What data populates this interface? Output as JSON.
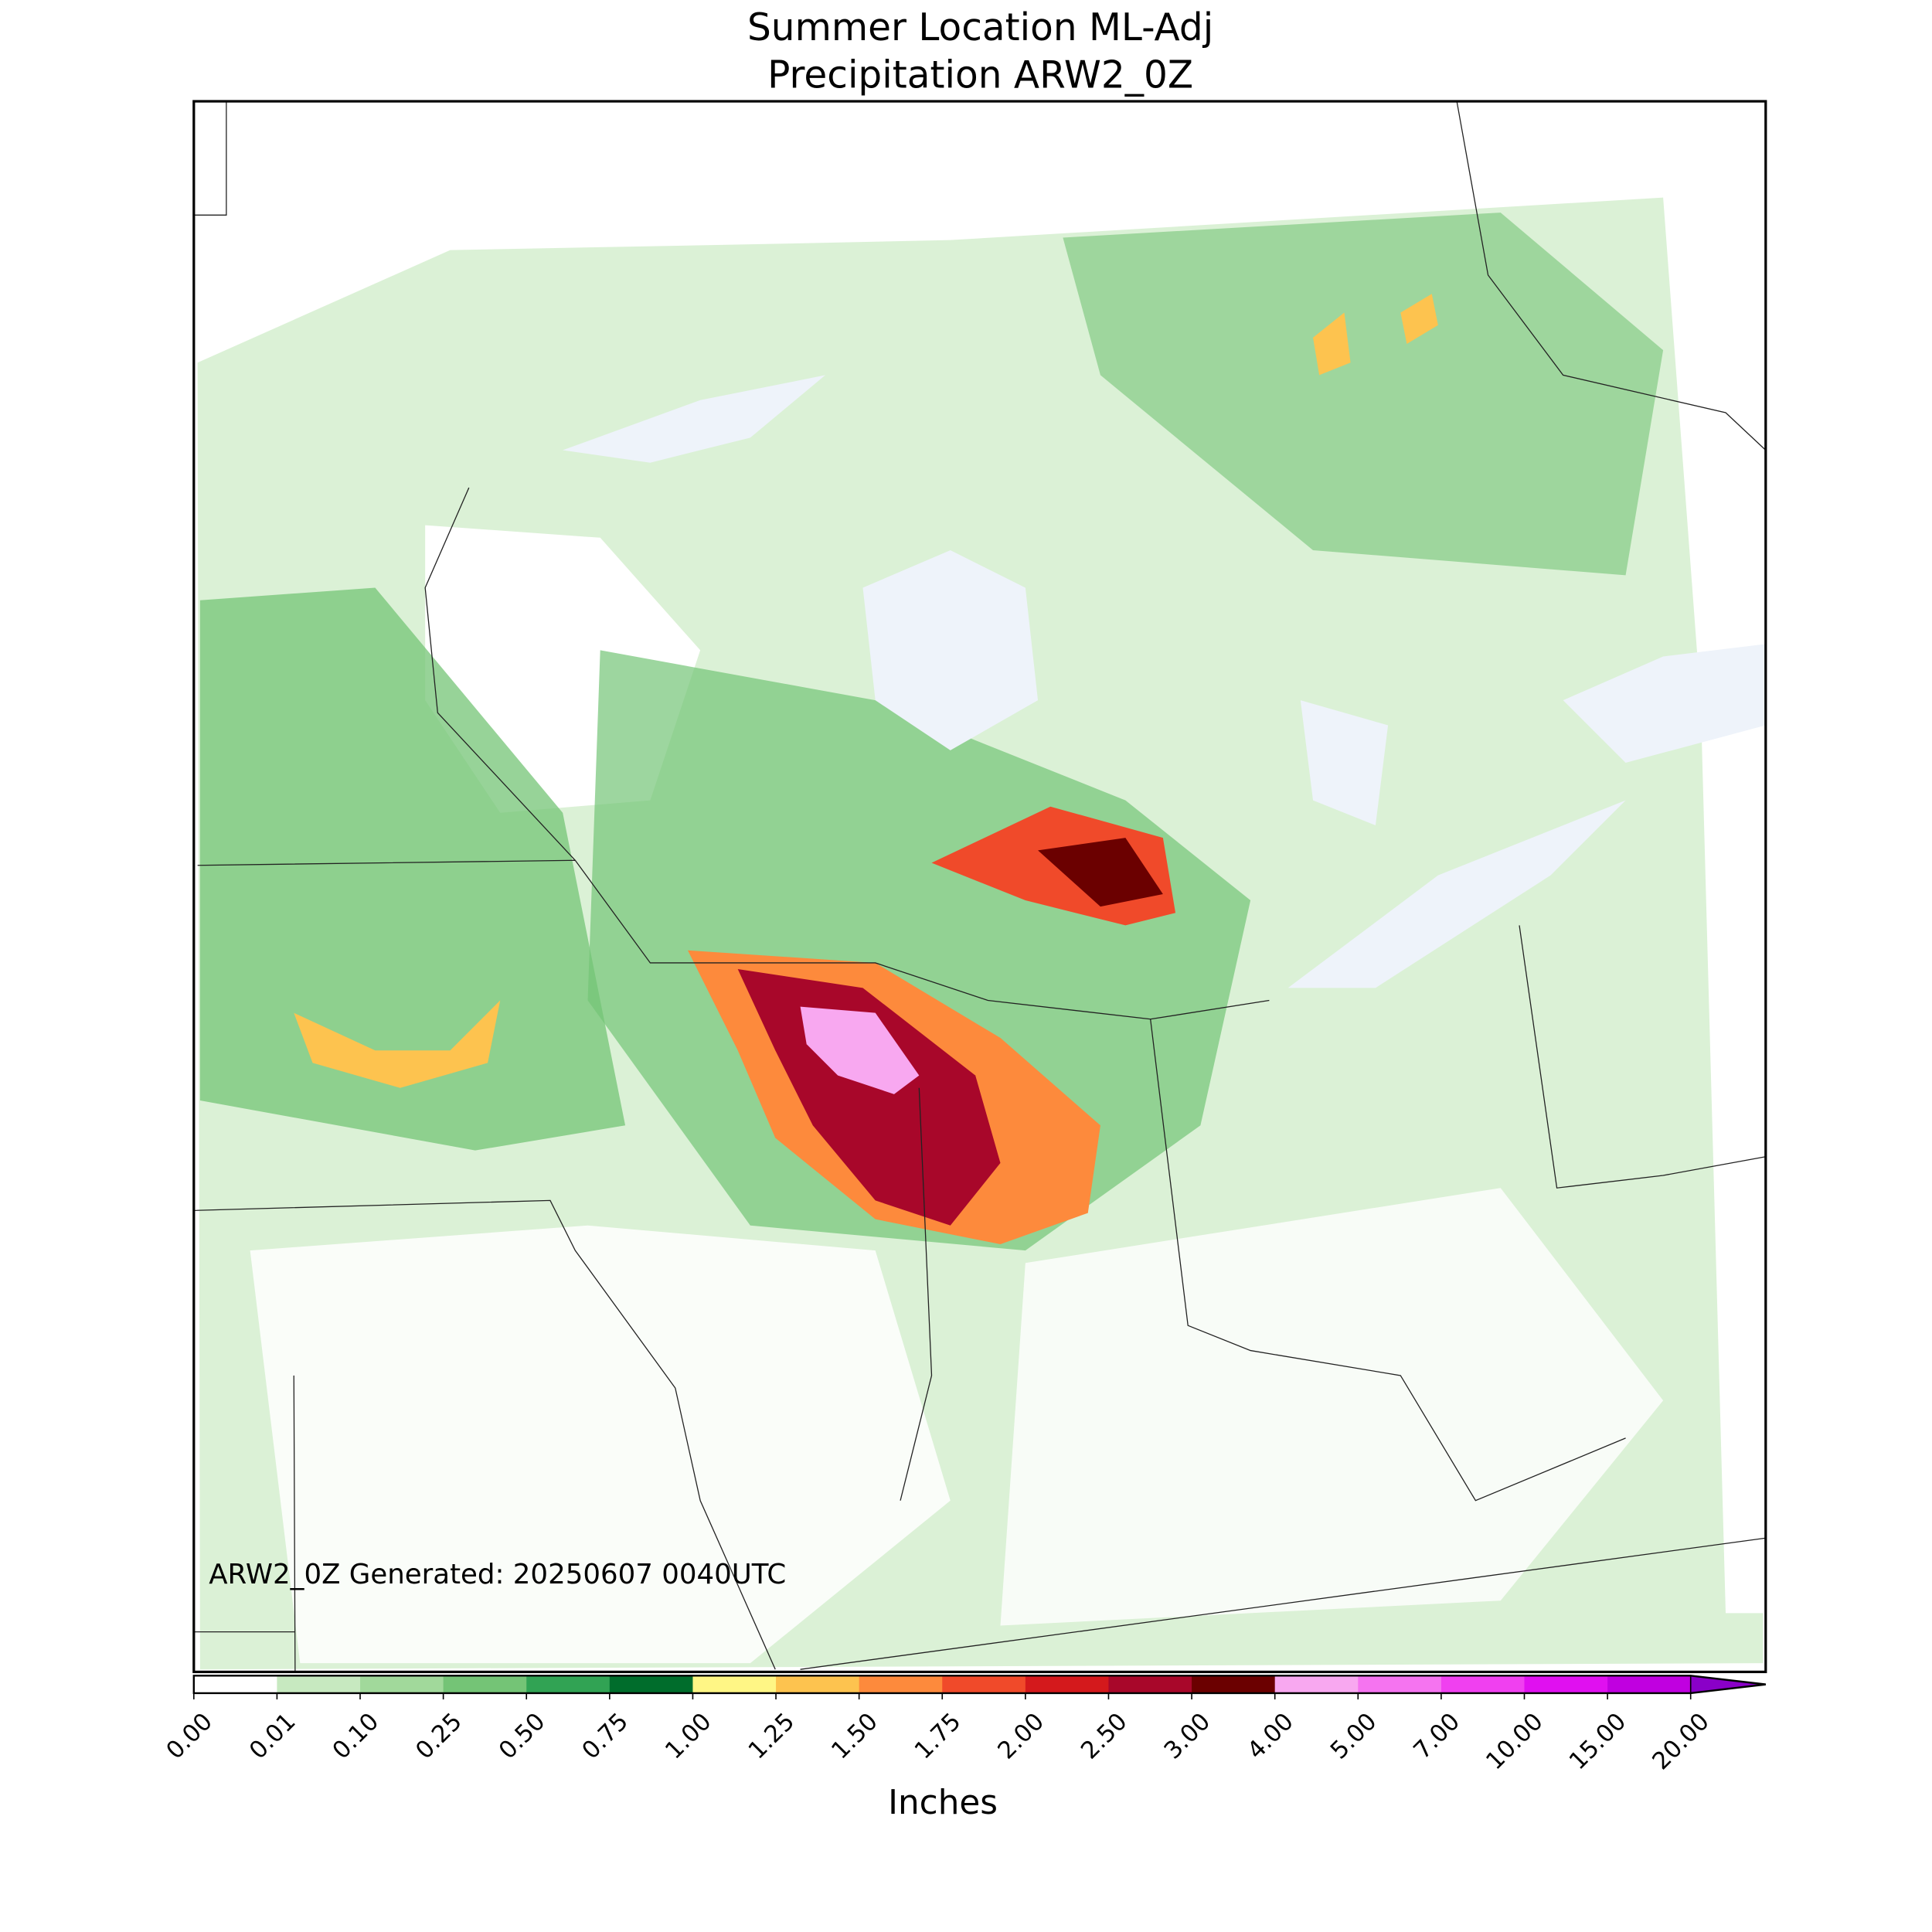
{
  "map": {
    "title": [
      "Summer Location ML-Adj",
      "Precipitation ARW2_0Z"
    ],
    "annotation": "ARW2_0Z Generated: 20250607 0040UTC",
    "colorbar": {
      "label": "Inches",
      "levels": [
        {
          "value": 0,
          "label": "0.00"
        },
        {
          "value": 0.01,
          "label": "0.01"
        },
        {
          "value": 0.1,
          "label": "0.10"
        },
        {
          "value": 0.25,
          "label": "0.25"
        },
        {
          "value": 0.5,
          "label": "0.50"
        },
        {
          "value": 0.75,
          "label": "0.75"
        },
        {
          "value": 1,
          "label": "1.00"
        },
        {
          "value": 1.25,
          "label": "1.25"
        },
        {
          "value": 1.5,
          "label": "1.50"
        },
        {
          "value": 1.75,
          "label": "1.75"
        },
        {
          "value": 2,
          "label": "2.00"
        },
        {
          "value": 2.5,
          "label": "2.50"
        },
        {
          "value": 3,
          "label": "3.00"
        },
        {
          "value": 4,
          "label": "4.00"
        },
        {
          "value": 5,
          "label": "5.00"
        },
        {
          "value": 7,
          "label": "7.00"
        },
        {
          "value": 10,
          "label": "10.00"
        },
        {
          "value": 15,
          "label": "15.00"
        },
        {
          "value": 20,
          "label": "20.00"
        }
      ],
      "colors": [
        "#ffffff",
        "#c7e9c0",
        "#a1d99b",
        "#74c476",
        "#31a354",
        "#006d2c",
        "#fff685",
        "#fdc34f",
        "#fd8a3c",
        "#f04a2a",
        "#d4191c",
        "#a8072a",
        "#6b0000",
        "#f8a8f0",
        "#f574f0",
        "#f040f0",
        "#e010f0",
        "#c000e0",
        "#8a00c8"
      ]
    }
  }
}
